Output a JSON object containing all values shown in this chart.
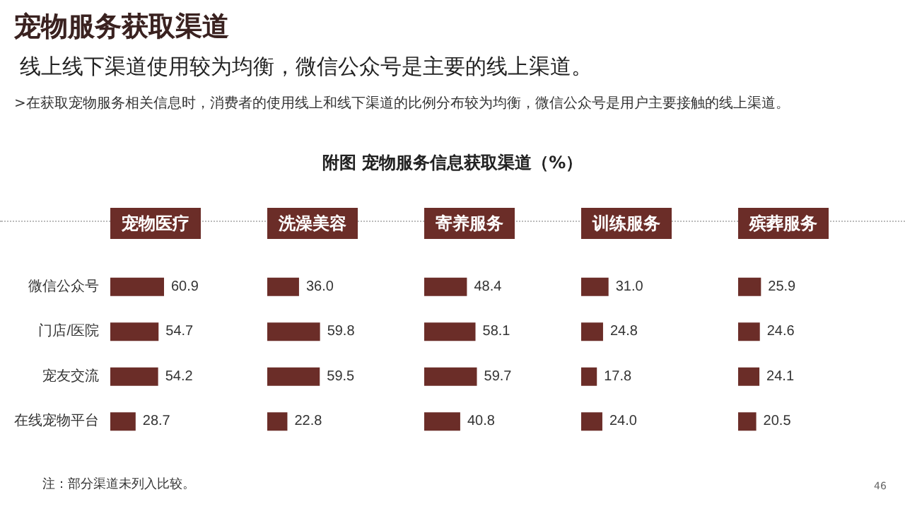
{
  "chart_data": [
    {
      "type": "other",
      "title": "宠物服务获取渠道",
      "subtitle": "线上线下渠道使用较为均衡，微信公众号是主要的线上渠道。",
      "annotations": [
        ">在获取宠物服务相关信息时，消费者的使用线上和线下渠道的比例分布较为均衡，微信公众号是用户主要接触的线上渠道。",
        "附图   宠物服务信息获取渠道（%）",
        "注：部分渠道未列入比较。",
        "46"
      ]
    },
    {
      "type": "bar",
      "orientation": "horizontal",
      "title": "宠物医疗",
      "tick_labels": "y",
      "categories": [
        "微信公众号",
        "门店/医院",
        "宠友交流",
        "在线宠物平台"
      ],
      "values": [
        60.9,
        54.7,
        54.2,
        28.7
      ],
      "value_labels": [
        "60.9",
        "54.7",
        "54.2",
        "28.7"
      ],
      "color": "#6b2d28"
    },
    {
      "type": "bar",
      "orientation": "horizontal",
      "title": "洗澡美容",
      "tick_labels": false,
      "categories": [
        null,
        null,
        null,
        null
      ],
      "values": [
        36.0,
        59.8,
        59.5,
        22.8
      ],
      "value_labels": [
        "36.0",
        "59.8",
        "59.5",
        "22.8"
      ],
      "color": "#6b2d28"
    },
    {
      "type": "bar",
      "orientation": "horizontal",
      "title": "寄养服务",
      "tick_labels": false,
      "categories": [
        null,
        null,
        null,
        null
      ],
      "values": [
        48.4,
        58.1,
        59.7,
        40.8
      ],
      "value_labels": [
        "48.4",
        "58.1",
        "59.7",
        "40.8"
      ],
      "color": "#6b2d28"
    },
    {
      "type": "bar",
      "orientation": "horizontal",
      "title": "训练服务",
      "tick_labels": false,
      "categories": [
        null,
        null,
        null,
        null
      ],
      "values": [
        31.0,
        24.8,
        17.8,
        24.0
      ],
      "value_labels": [
        "31.0",
        "24.8",
        "17.8",
        "24.0"
      ],
      "color": "#6b2d28"
    },
    {
      "type": "bar",
      "orientation": "horizontal",
      "title": "殡葬服务",
      "tick_labels": false,
      "categories": [
        null,
        null,
        null,
        null
      ],
      "values": [
        25.9,
        24.6,
        24.1,
        20.5
      ],
      "value_labels": [
        "25.9",
        "24.6",
        "24.1",
        "20.5"
      ],
      "color": "#6b2d28"
    }
  ]
}
